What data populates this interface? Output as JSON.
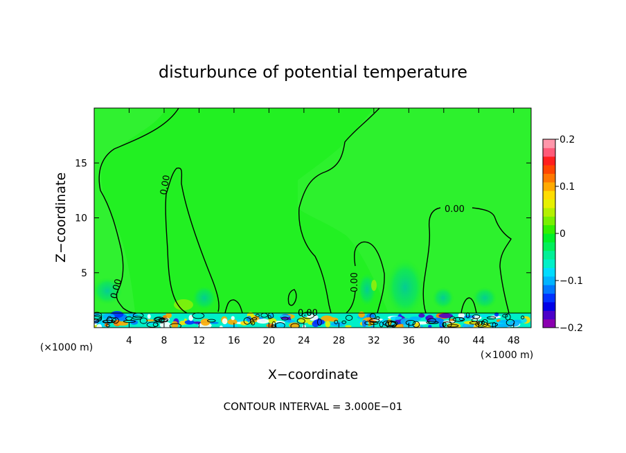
{
  "chart_data": {
    "type": "heatmap",
    "title": "disturbunce of potential temperature",
    "xlabel": "X−coordinate",
    "ylabel": "Z−coordinate",
    "x_unit_left": "(×1000 m)",
    "x_unit_right": "(×1000 m)",
    "xlim": [
      0,
      50
    ],
    "ylim": [
      0,
      20
    ],
    "x_ticks": [
      4,
      8,
      12,
      16,
      20,
      24,
      28,
      32,
      36,
      40,
      44,
      48
    ],
    "y_ticks": [
      5,
      10,
      15
    ],
    "footer": "CONTOUR INTERVAL = 3.000E−01",
    "contour_labels": [
      "0.00",
      "0.00",
      "0.00",
      "0.00",
      "0.00"
    ],
    "colorbar": {
      "min": -0.2,
      "max": 0.2,
      "tick_values": [
        0.2,
        0.1,
        0,
        -0.1,
        -0.2
      ],
      "tick_labels": [
        "0.2",
        "0.1",
        "0",
        "−0.1",
        "−0.2"
      ],
      "colors": [
        "#8b00b0",
        "#4b00c8",
        "#0000e6",
        "#0032ff",
        "#0078ff",
        "#00b4ff",
        "#00dcff",
        "#00f0c8",
        "#00f096",
        "#00f05a",
        "#00f028",
        "#32f000",
        "#78f000",
        "#b4f000",
        "#e6f000",
        "#ffdc00",
        "#ffaa00",
        "#ff7800",
        "#ff4600",
        "#ff1e1e",
        "#ff5a78",
        "#ff96aa"
      ]
    },
    "background_color": "#22f022",
    "contour_color": "#000000"
  }
}
